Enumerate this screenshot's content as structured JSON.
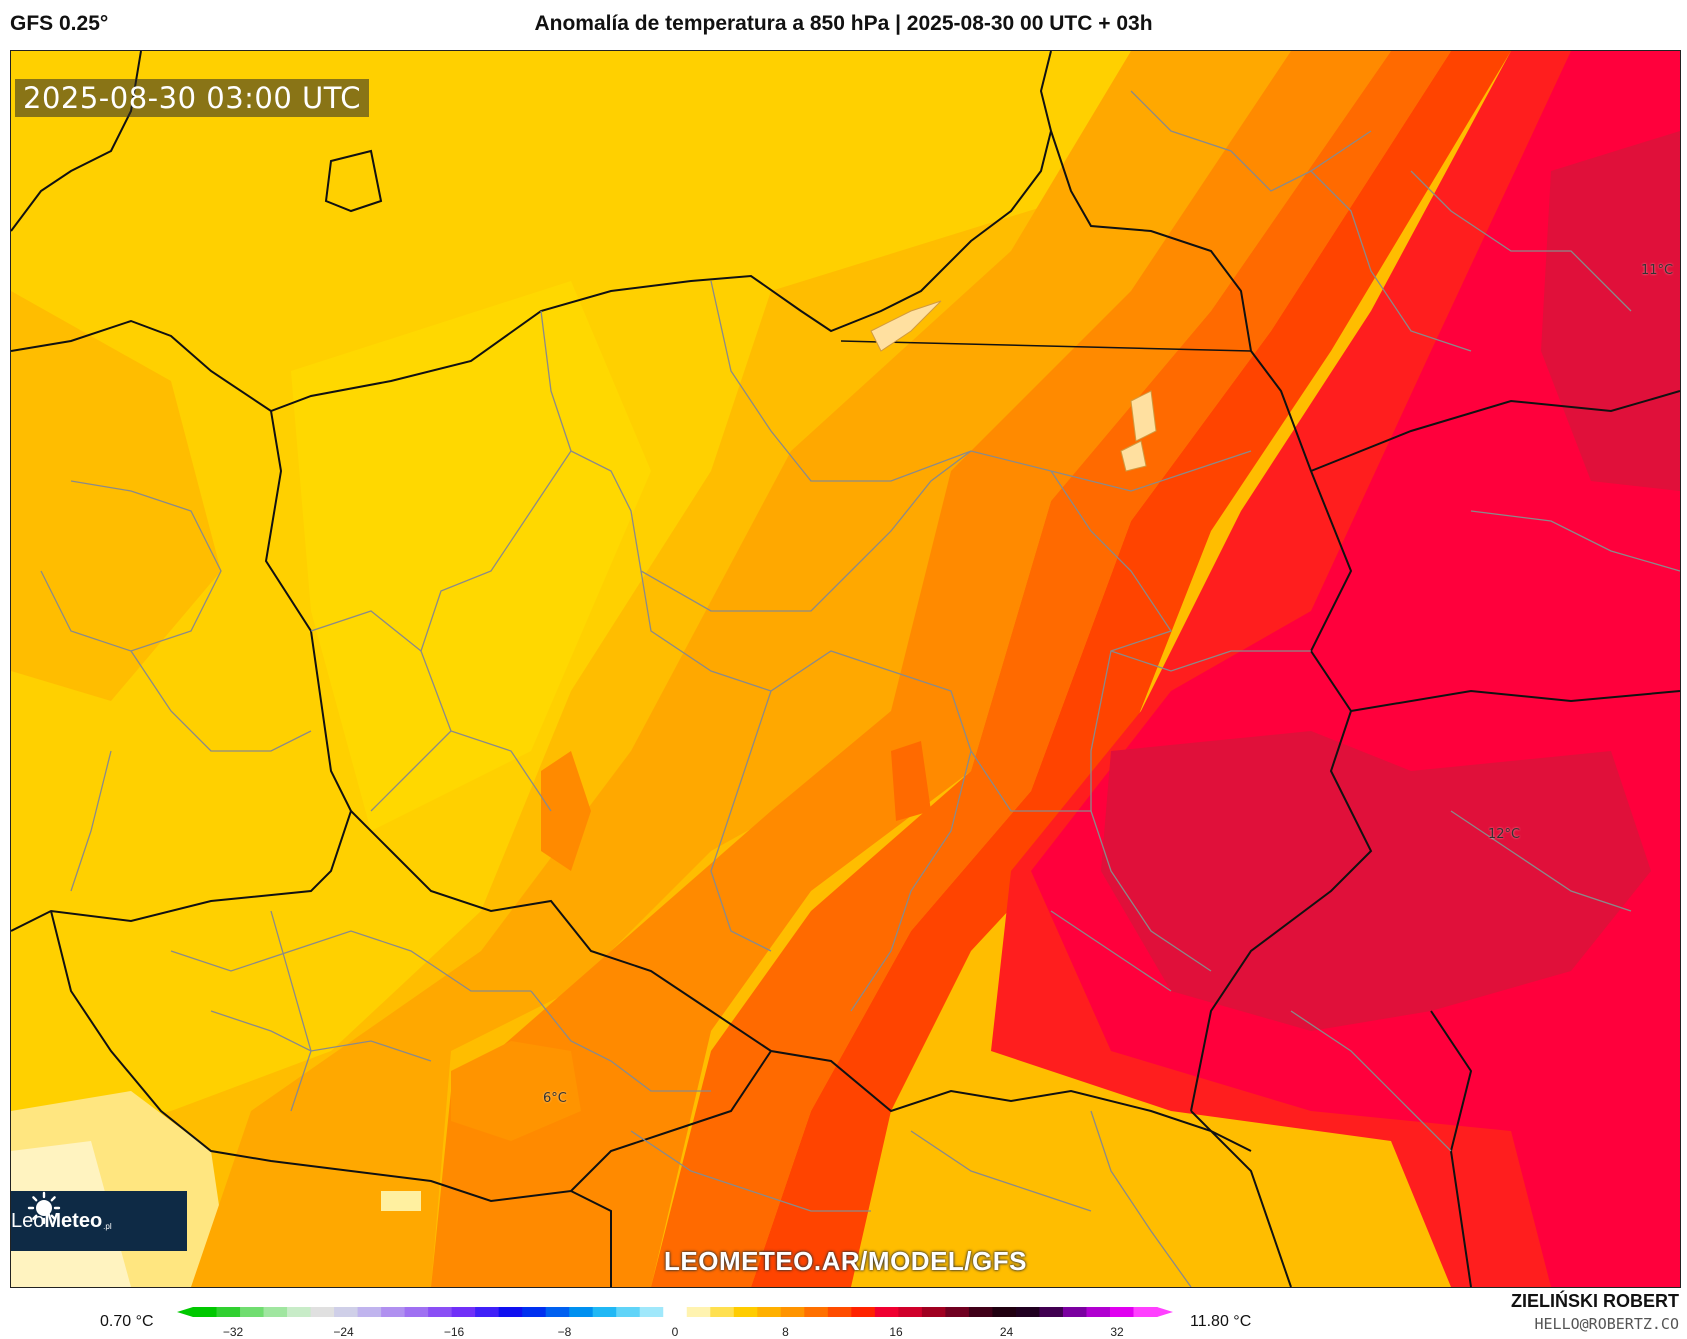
{
  "header": {
    "model": "GFS 0.25°",
    "title": "Anomalía de temperatura a 850 hPa | 2025-08-30 00 UTC + 03h"
  },
  "map": {
    "valid_time": "2025-08-30 03:00 UTC",
    "watermark": "LEOMETEO.AR/MODEL/GFS",
    "value_labels": [
      {
        "name": "value-label-11",
        "text": "11°C"
      },
      {
        "name": "value-label-12",
        "text": "12°C"
      },
      {
        "name": "value-label-6",
        "text": "6°C"
      }
    ]
  },
  "logo": {
    "text_a": "Leo",
    "text_b": "Meteo",
    "suffix": ".pl"
  },
  "colorbar": {
    "min_label": "0.70 °C",
    "max_label": "11.80 °C",
    "ticks": [
      "−32",
      "−24",
      "−16",
      "−8",
      "0",
      "8",
      "16",
      "24",
      "32"
    ],
    "colors": [
      "#00c800",
      "#30d030",
      "#70dd70",
      "#a0e6a0",
      "#c8ecc8",
      "#e0e0e0",
      "#cfcfe8",
      "#c0b4ee",
      "#b090f0",
      "#9f70f2",
      "#8a4ff5",
      "#7030f8",
      "#4020f8",
      "#1010f0",
      "#0030f0",
      "#0060f0",
      "#0090f0",
      "#20b8f5",
      "#60d4f8",
      "#a0e8fb",
      "#ffffff",
      "#fff3b0",
      "#ffe050",
      "#ffcc00",
      "#ffb000",
      "#ff9400",
      "#ff7000",
      "#ff4c00",
      "#ff2200",
      "#f00030",
      "#d0002a",
      "#a00020",
      "#700020",
      "#400018",
      "#200010",
      "#200020",
      "#400050",
      "#7a00a0",
      "#b000d0",
      "#e000f0",
      "#ff40ff"
    ]
  },
  "author": {
    "name": "ZIELIŃSKI ROBERT",
    "email": "HELLO@ROBERTZ.CO"
  },
  "palette": {
    "anomaly_2": "#ffe040",
    "anomaly_4": "#ffd000",
    "anomaly_5": "#ffbd00",
    "anomaly_6": "#ffa800",
    "anomaly_7": "#ff8a00",
    "anomaly_8": "#ff6a00",
    "anomaly_9": "#ff4400",
    "anomaly_10": "#ff1e1e",
    "anomaly_11": "#ff003c",
    "anomaly_12": "#e0103a"
  }
}
